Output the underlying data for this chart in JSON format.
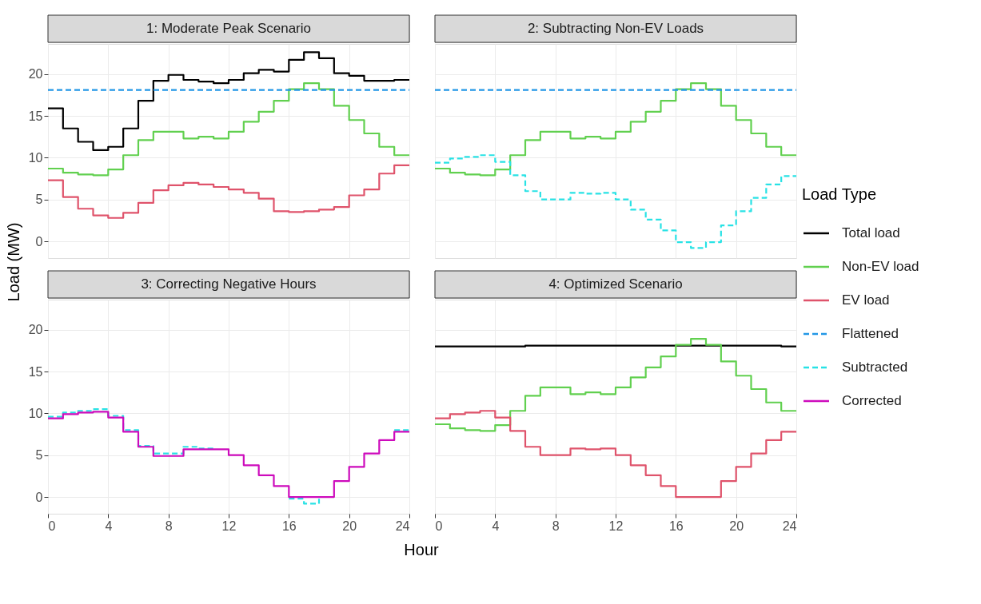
{
  "chart_data": [
    {
      "type": "step",
      "title": "1: Moderate Peak Scenario",
      "legend": "right",
      "legend_title": "Load Type",
      "grid": true,
      "tick_labels": "y",
      "xlim": [
        0,
        24
      ],
      "xticks": [
        0,
        4,
        8,
        12,
        16,
        20,
        24
      ],
      "ylim": [
        -2,
        23.6
      ],
      "yticks": [
        0,
        5,
        10,
        15,
        20
      ],
      "x": [
        0,
        1,
        2,
        3,
        4,
        5,
        6,
        7,
        8,
        9,
        10,
        11,
        12,
        13,
        14,
        15,
        16,
        17,
        18,
        19,
        20,
        21,
        22,
        23,
        24
      ],
      "series": [
        {
          "name": "Total load",
          "color": "#000000",
          "line_style": "solid",
          "values": [
            15.9,
            13.5,
            11.9,
            10.9,
            11.3,
            13.5,
            16.8,
            19.2,
            19.9,
            19.3,
            19.1,
            18.9,
            19.3,
            20.1,
            20.5,
            20.3,
            21.7,
            22.6,
            21.9,
            20.1,
            19.8,
            19.2,
            19.2,
            19.3,
            19.3
          ]
        },
        {
          "name": "Non-EV load",
          "color": "#61d04f",
          "line_style": "solid",
          "values": [
            8.7,
            8.2,
            8.0,
            7.9,
            8.6,
            10.3,
            12.1,
            13.1,
            13.1,
            12.3,
            12.5,
            12.3,
            13.1,
            14.3,
            15.5,
            16.8,
            18.2,
            18.9,
            18.2,
            16.2,
            14.5,
            12.9,
            11.3,
            10.3,
            10.3
          ]
        },
        {
          "name": "EV load",
          "color": "#df536b",
          "line_style": "solid",
          "values": [
            7.3,
            5.3,
            3.9,
            3.1,
            2.8,
            3.4,
            4.6,
            6.1,
            6.7,
            7.0,
            6.8,
            6.5,
            6.2,
            5.8,
            5.1,
            3.6,
            3.5,
            3.6,
            3.8,
            4.1,
            5.5,
            6.2,
            8.1,
            9.1,
            9.1
          ]
        },
        {
          "name": "Flattened",
          "color": "#2297e6",
          "line_style": "dashed",
          "values": [
            18.1,
            18.1,
            18.1,
            18.1,
            18.1,
            18.1,
            18.1,
            18.1,
            18.1,
            18.1,
            18.1,
            18.1,
            18.1,
            18.1,
            18.1,
            18.1,
            18.1,
            18.1,
            18.1,
            18.1,
            18.1,
            18.1,
            18.1,
            18.1,
            18.1
          ]
        }
      ]
    },
    {
      "type": "step",
      "title": "2: Subtracting Non-EV Loads",
      "grid": true,
      "tick_labels": false,
      "xlim": [
        0,
        24
      ],
      "xticks": [
        0,
        4,
        8,
        12,
        16,
        20,
        24
      ],
      "ylim": [
        -2,
        23.6
      ],
      "yticks": [
        0,
        5,
        10,
        15,
        20
      ],
      "x": [
        0,
        1,
        2,
        3,
        4,
        5,
        6,
        7,
        8,
        9,
        10,
        11,
        12,
        13,
        14,
        15,
        16,
        17,
        18,
        19,
        20,
        21,
        22,
        23,
        24
      ],
      "series": [
        {
          "name": "Non-EV load",
          "color": "#61d04f",
          "line_style": "solid",
          "values": [
            8.7,
            8.2,
            8.0,
            7.9,
            8.6,
            10.3,
            12.1,
            13.1,
            13.1,
            12.3,
            12.5,
            12.3,
            13.1,
            14.3,
            15.5,
            16.8,
            18.2,
            18.9,
            18.2,
            16.2,
            14.5,
            12.9,
            11.3,
            10.3,
            10.3
          ]
        },
        {
          "name": "Flattened",
          "color": "#2297e6",
          "line_style": "dashed",
          "values": [
            18.1,
            18.1,
            18.1,
            18.1,
            18.1,
            18.1,
            18.1,
            18.1,
            18.1,
            18.1,
            18.1,
            18.1,
            18.1,
            18.1,
            18.1,
            18.1,
            18.1,
            18.1,
            18.1,
            18.1,
            18.1,
            18.1,
            18.1,
            18.1,
            18.1
          ]
        },
        {
          "name": "Subtracted",
          "color": "#28e2e5",
          "line_style": "dashed",
          "values": [
            9.4,
            9.9,
            10.1,
            10.3,
            9.5,
            7.9,
            6.0,
            5.0,
            5.0,
            5.8,
            5.7,
            5.8,
            5.0,
            3.8,
            2.6,
            1.3,
            -0.1,
            -0.8,
            -0.1,
            1.9,
            3.6,
            5.2,
            6.8,
            7.8,
            7.8
          ]
        }
      ]
    },
    {
      "type": "step",
      "title": "3: Correcting Negative Hours",
      "xlabel": "Hour",
      "ylabel": "Load (MW)",
      "grid": true,
      "xlim": [
        0,
        24
      ],
      "xticks": [
        0,
        4,
        8,
        12,
        16,
        20,
        24
      ],
      "ylim": [
        -2,
        23.6
      ],
      "yticks": [
        0,
        5,
        10,
        15,
        20
      ],
      "x": [
        0,
        1,
        2,
        3,
        4,
        5,
        6,
        7,
        8,
        9,
        10,
        11,
        12,
        13,
        14,
        15,
        16,
        17,
        18,
        19,
        20,
        21,
        22,
        23,
        24
      ],
      "series": [
        {
          "name": "Subtracted",
          "color": "#28e2e5",
          "line_style": "dashed",
          "values": [
            9.6,
            10.1,
            10.3,
            10.5,
            9.7,
            8.0,
            6.1,
            5.2,
            5.2,
            6.0,
            5.8,
            5.9,
            null,
            null,
            null,
            null,
            -0.2,
            -0.8,
            -0.2,
            null,
            null,
            null,
            null,
            8.0,
            8.0
          ]
        },
        {
          "name": "Corrected",
          "color": "#cd0bbc",
          "line_style": "solid",
          "values": [
            9.4,
            9.9,
            10.1,
            10.2,
            9.5,
            7.8,
            6.0,
            4.9,
            4.9,
            5.7,
            5.7,
            5.7,
            5.0,
            3.8,
            2.6,
            1.3,
            0.0,
            0.0,
            0.0,
            1.9,
            3.6,
            5.2,
            6.8,
            7.8,
            7.8
          ]
        }
      ]
    },
    {
      "type": "step",
      "title": "4: Optimized Scenario",
      "grid": true,
      "tick_labels": "x",
      "xlim": [
        0,
        24
      ],
      "xticks": [
        0,
        4,
        8,
        12,
        16,
        20,
        24
      ],
      "ylim": [
        -2,
        23.6
      ],
      "yticks": [
        0,
        5,
        10,
        15,
        20
      ],
      "x": [
        0,
        1,
        2,
        3,
        4,
        5,
        6,
        7,
        8,
        9,
        10,
        11,
        12,
        13,
        14,
        15,
        16,
        17,
        18,
        19,
        20,
        21,
        22,
        23,
        24
      ],
      "series": [
        {
          "name": "Total load",
          "color": "#000000",
          "line_style": "solid",
          "values": [
            18.0,
            18.0,
            18.0,
            18.0,
            18.0,
            18.0,
            18.1,
            18.1,
            18.1,
            18.1,
            18.1,
            18.1,
            18.1,
            18.1,
            18.1,
            18.1,
            18.1,
            18.1,
            18.1,
            18.1,
            18.1,
            18.1,
            18.1,
            18.0,
            18.0
          ]
        },
        {
          "name": "Non-EV load",
          "color": "#61d04f",
          "line_style": "solid",
          "values": [
            8.7,
            8.2,
            8.0,
            7.9,
            8.6,
            10.3,
            12.1,
            13.1,
            13.1,
            12.3,
            12.5,
            12.3,
            13.1,
            14.3,
            15.5,
            16.8,
            18.2,
            18.9,
            18.2,
            16.2,
            14.5,
            12.9,
            11.3,
            10.3,
            10.3
          ]
        },
        {
          "name": "EV load",
          "color": "#df536b",
          "line_style": "solid",
          "values": [
            9.4,
            9.9,
            10.1,
            10.3,
            9.5,
            7.9,
            6.0,
            5.0,
            5.0,
            5.8,
            5.7,
            5.8,
            5.0,
            3.8,
            2.6,
            1.3,
            0.0,
            0.0,
            0.0,
            1.9,
            3.6,
            5.2,
            6.8,
            7.8,
            7.8
          ]
        }
      ]
    }
  ]
}
